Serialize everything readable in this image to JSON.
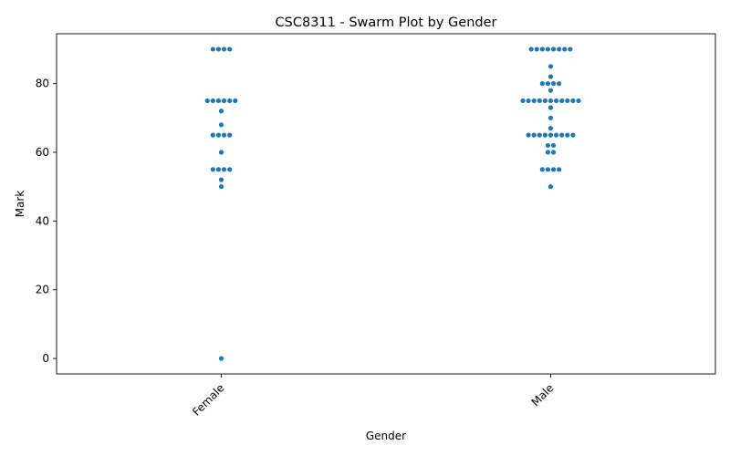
{
  "chart_data": {
    "type": "scatter",
    "subtype": "swarm",
    "title": "CSC8311 - Swarm Plot by Gender",
    "xlabel": "Gender",
    "ylabel": "Mark",
    "categories": [
      "Female",
      "Male"
    ],
    "ylim": [
      -4.5,
      94.5
    ],
    "yticks": [
      0,
      20,
      40,
      60,
      80
    ],
    "grid": false,
    "point_color": "#1f77b4",
    "series": [
      {
        "category": "Female",
        "values": [
          90,
          90,
          90,
          90,
          75,
          75,
          75,
          75,
          75,
          75,
          72,
          68,
          65,
          65,
          65,
          65,
          60,
          55,
          55,
          55,
          55,
          52,
          50,
          0
        ]
      },
      {
        "category": "Male",
        "values": [
          90,
          90,
          90,
          90,
          90,
          90,
          90,
          90,
          85,
          82,
          80,
          80,
          80,
          80,
          78,
          75,
          75,
          75,
          75,
          75,
          75,
          75,
          75,
          75,
          75,
          75,
          73,
          70,
          67,
          65,
          65,
          65,
          65,
          65,
          65,
          65,
          65,
          65,
          62,
          62,
          60,
          60,
          55,
          55,
          55,
          55,
          50
        ]
      }
    ]
  }
}
